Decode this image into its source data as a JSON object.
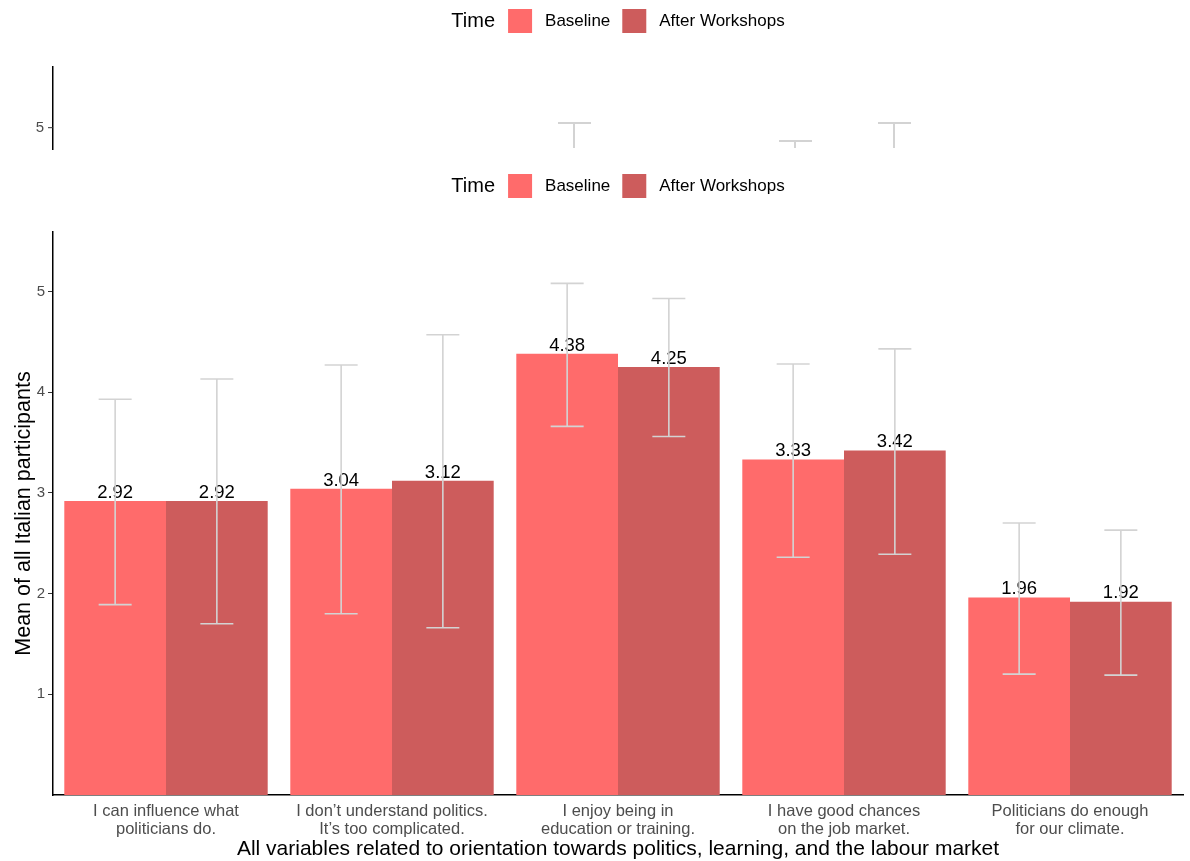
{
  "chart_data": [
    {
      "type": "other",
      "series": [
        {
          "name": "Baseline",
          "color": "#ff6b6b"
        },
        {
          "name": "After Workshops",
          "color": "#cd5c5c"
        }
      ],
      "legend": "top",
      "legend_title": "Time",
      "annotations": [
        "5"
      ]
    },
    {
      "type": "bar",
      "categories": [
        "I can influence what\npoliticians do.",
        "I don’t understand politics.\nIt’s too complicated.",
        "I enjoy being in\neducation or training.",
        "I have good chances\non the job market.",
        "Politicians do enough\nfor our climate."
      ],
      "series": [
        {
          "name": "Baseline",
          "color": "#ff6b6b",
          "values": [
            2.92,
            3.04,
            4.38,
            3.33,
            1.96
          ],
          "errors": [
            [
              1.89,
              3.93
            ],
            [
              1.8,
              4.27
            ],
            [
              3.66,
              5.08
            ],
            [
              2.36,
              4.28
            ],
            [
              1.2,
              2.7
            ]
          ]
        },
        {
          "name": "After Workshops",
          "color": "#cd5c5c",
          "values": [
            2.92,
            3.12,
            4.25,
            3.42,
            1.92
          ],
          "errors": [
            [
              1.7,
              4.13
            ],
            [
              1.66,
              4.57
            ],
            [
              3.56,
              4.93
            ],
            [
              2.39,
              4.43
            ],
            [
              1.19,
              2.63
            ]
          ]
        }
      ],
      "xlabel": "All variables related to orientation towards politics, learning, and the labour market",
      "ylabel": "Mean of all Italian participants",
      "ylim": [
        0,
        5.59
      ],
      "yticks": [
        1,
        2,
        3,
        4,
        5
      ],
      "legend": "top",
      "legend_title": "Time",
      "data_labels": true
    }
  ]
}
